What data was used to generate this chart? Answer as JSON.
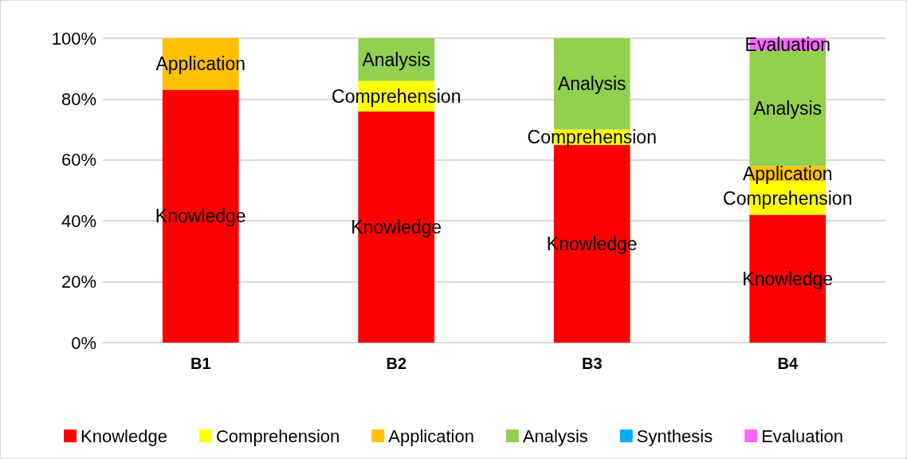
{
  "chart_data": {
    "type": "bar",
    "stacked": true,
    "categories": [
      "B1",
      "B2",
      "B3",
      "B4"
    ],
    "series": [
      {
        "name": "Knowledge",
        "color": "#ff0000",
        "values": [
          83,
          76,
          65,
          42
        ],
        "value_labels": [
          "Knowledge",
          "Knowledge",
          "Knowledge",
          "Knowledge"
        ]
      },
      {
        "name": "Comprehension",
        "color": "#ffff00",
        "values": [
          0,
          10,
          5,
          11
        ],
        "value_labels": [
          null,
          "Comprehension",
          "Comprehension",
          "Comprehension"
        ]
      },
      {
        "name": "Application",
        "color": "#ffc000",
        "values": [
          17,
          0,
          0,
          5
        ],
        "value_labels": [
          "Application",
          null,
          null,
          "Application"
        ]
      },
      {
        "name": "Analysis",
        "color": "#92d050",
        "values": [
          0,
          14,
          30,
          38
        ],
        "value_labels": [
          null,
          "Analysis",
          "Analysis",
          "Analysis"
        ]
      },
      {
        "name": "Synthesis",
        "color": "#00b0f0",
        "values": [
          0,
          0,
          0,
          0
        ],
        "value_labels": [
          null,
          null,
          null,
          null
        ]
      },
      {
        "name": "Evaluation",
        "color": "#ff66ff",
        "values": [
          0,
          0,
          0,
          4
        ],
        "value_labels": [
          null,
          null,
          null,
          "Evaluation"
        ]
      }
    ],
    "ylim": [
      0,
      100
    ],
    "yticks": [
      {
        "value": 0,
        "label": "0%"
      },
      {
        "value": 20,
        "label": "20%"
      },
      {
        "value": 40,
        "label": "40%"
      },
      {
        "value": 60,
        "label": "60%"
      },
      {
        "value": 80,
        "label": "80%"
      },
      {
        "value": 100,
        "label": "100%"
      }
    ],
    "grid": "y",
    "legend": "bottom"
  }
}
